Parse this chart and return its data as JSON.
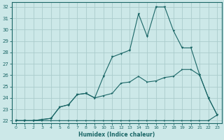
{
  "xlabel": "Humidex (Indice chaleur)",
  "bg_color": "#cce8e8",
  "grid_color": "#aacccc",
  "line_color": "#1a6666",
  "xlim": [
    -0.5,
    23.5
  ],
  "ylim": [
    21.8,
    32.4
  ],
  "xticks": [
    0,
    1,
    2,
    3,
    4,
    5,
    6,
    7,
    8,
    9,
    10,
    11,
    12,
    13,
    14,
    15,
    16,
    17,
    18,
    19,
    20,
    21,
    22,
    23
  ],
  "yticks": [
    22,
    23,
    24,
    25,
    26,
    27,
    28,
    29,
    30,
    31,
    32
  ],
  "line1_x": [
    0,
    1,
    2,
    3,
    4,
    5,
    6,
    7,
    8,
    9,
    10,
    11,
    12,
    13,
    14,
    15,
    16,
    17,
    18,
    19,
    20,
    21,
    22,
    23
  ],
  "line1_y": [
    22,
    22,
    22,
    22,
    22,
    22,
    22,
    22,
    22,
    22,
    22,
    22,
    22,
    22,
    22,
    22,
    22,
    22,
    22,
    22,
    22,
    22,
    22,
    22.5
  ],
  "line2_x": [
    0,
    1,
    2,
    3,
    4,
    5,
    6,
    7,
    8,
    9,
    10,
    11,
    12,
    13,
    14,
    15,
    16,
    17,
    18,
    19,
    20,
    21,
    22,
    23
  ],
  "line2_y": [
    22,
    22,
    22,
    22.1,
    22.2,
    23.2,
    23.4,
    24.3,
    24.4,
    24.0,
    24.2,
    24.4,
    25.3,
    25.4,
    25.9,
    25.4,
    25.5,
    25.8,
    25.9,
    26.5,
    26.5,
    26.0,
    24.0,
    22.5
  ],
  "line3_x": [
    0,
    1,
    2,
    3,
    4,
    5,
    6,
    7,
    8,
    9,
    10,
    11,
    12,
    13,
    14,
    15,
    16,
    17,
    18,
    19,
    20,
    21,
    22,
    23
  ],
  "line3_y": [
    22,
    22,
    22,
    22.1,
    22.2,
    23.2,
    23.4,
    24.3,
    24.4,
    24.0,
    25.9,
    27.6,
    27.9,
    28.2,
    31.4,
    29.4,
    32.0,
    32.0,
    29.9,
    28.4,
    28.4,
    26.0,
    24.0,
    22.5
  ]
}
